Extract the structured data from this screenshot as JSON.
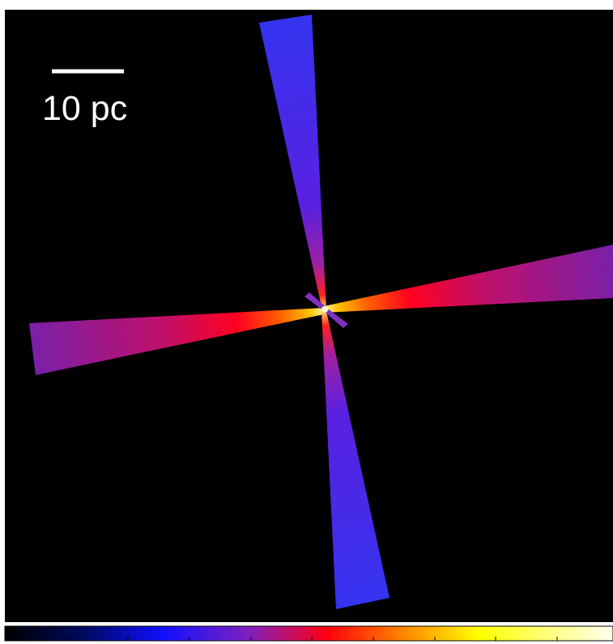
{
  "scale_bar": {
    "label": "10 pc"
  }
}
